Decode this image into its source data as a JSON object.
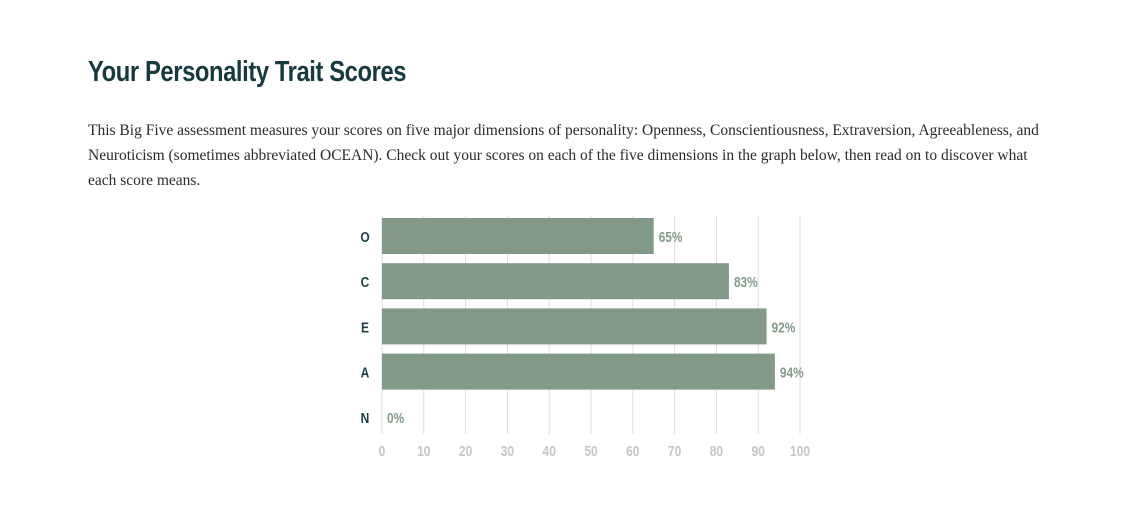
{
  "page": {
    "title": "Your Personality Trait Scores",
    "intro": "This Big Five assessment measures your scores on five major dimensions of personality: Openness, Conscientiousness, Extraversion, Agreeableness, and Neuroticism (sometimes abbreviated OCEAN). Check out your scores on each of the five dimensions in the graph below, then read on to discover what each score means."
  },
  "colors": {
    "title": "#163a3e",
    "bar": "#849a89",
    "bar_label": "#849a89",
    "category_label": "#1f3f44",
    "tick_label": "#c5c5c5",
    "grid": "#dedede"
  },
  "chart_data": {
    "type": "bar",
    "orientation": "horizontal",
    "categories": [
      "O",
      "C",
      "E",
      "A",
      "N"
    ],
    "values": [
      65,
      83,
      92,
      94,
      0
    ],
    "value_labels": [
      "65%",
      "83%",
      "92%",
      "94%",
      "0%"
    ],
    "xlim": [
      0,
      100
    ],
    "xticks": [
      "0",
      "10",
      "20",
      "30",
      "40",
      "50",
      "60",
      "70",
      "80",
      "90",
      "100"
    ],
    "grid": true,
    "title": "",
    "xlabel": "",
    "ylabel": ""
  }
}
